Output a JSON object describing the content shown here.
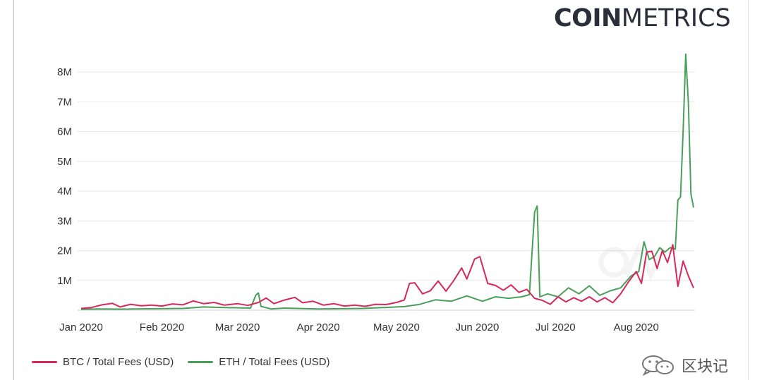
{
  "brand": {
    "logo_bold": "COIN",
    "logo_light": "METRICS"
  },
  "watermark": {
    "text": "区块记",
    "icon": "wechat-icon"
  },
  "colors": {
    "btc": "#d6285a",
    "eth": "#4aa05a",
    "grid": "#e8e8e8",
    "axis": "#cccccc",
    "text": "#333333"
  },
  "chart_data": {
    "type": "line",
    "title": "",
    "xlabel": "",
    "ylabel": "",
    "x_axis": "date",
    "x_range": [
      "2020-01-01",
      "2020-08-23"
    ],
    "ylim": [
      0,
      8500000
    ],
    "x_ticks": [
      {
        "date": "2020-01-01",
        "label": "Jan 2020"
      },
      {
        "date": "2020-02-01",
        "label": "Feb 2020"
      },
      {
        "date": "2020-03-01",
        "label": "Mar 2020"
      },
      {
        "date": "2020-04-01",
        "label": "Apr 2020"
      },
      {
        "date": "2020-05-01",
        "label": "May 2020"
      },
      {
        "date": "2020-06-01",
        "label": "Jun 2020"
      },
      {
        "date": "2020-07-01",
        "label": "Jul 2020"
      },
      {
        "date": "2020-08-01",
        "label": "Aug 2020"
      }
    ],
    "y_ticks": [
      {
        "value": 1000000,
        "label": "1M"
      },
      {
        "value": 2000000,
        "label": "2M"
      },
      {
        "value": 3000000,
        "label": "3M"
      },
      {
        "value": 4000000,
        "label": "4M"
      },
      {
        "value": 5000000,
        "label": "5M"
      },
      {
        "value": 6000000,
        "label": "6M"
      },
      {
        "value": 7000000,
        "label": "7M"
      },
      {
        "value": 8000000,
        "label": "8M"
      }
    ],
    "grid": true,
    "legend_position": "bottom-left",
    "series": [
      {
        "name": "BTC / Total Fees (USD)",
        "color": "#d6285a",
        "points": [
          [
            "2020-01-01",
            60000
          ],
          [
            "2020-01-05",
            90000
          ],
          [
            "2020-01-09",
            180000
          ],
          [
            "2020-01-13",
            230000
          ],
          [
            "2020-01-16",
            110000
          ],
          [
            "2020-01-20",
            200000
          ],
          [
            "2020-01-24",
            150000
          ],
          [
            "2020-01-28",
            170000
          ],
          [
            "2020-02-01",
            140000
          ],
          [
            "2020-02-05",
            210000
          ],
          [
            "2020-02-09",
            180000
          ],
          [
            "2020-02-13",
            310000
          ],
          [
            "2020-02-17",
            220000
          ],
          [
            "2020-02-21",
            260000
          ],
          [
            "2020-02-25",
            170000
          ],
          [
            "2020-03-01",
            220000
          ],
          [
            "2020-03-05",
            160000
          ],
          [
            "2020-03-09",
            260000
          ],
          [
            "2020-03-12",
            410000
          ],
          [
            "2020-03-15",
            220000
          ],
          [
            "2020-03-19",
            340000
          ],
          [
            "2020-03-23",
            430000
          ],
          [
            "2020-03-26",
            250000
          ],
          [
            "2020-03-30",
            300000
          ],
          [
            "2020-04-03",
            170000
          ],
          [
            "2020-04-07",
            220000
          ],
          [
            "2020-04-11",
            140000
          ],
          [
            "2020-04-15",
            170000
          ],
          [
            "2020-04-19",
            130000
          ],
          [
            "2020-04-23",
            200000
          ],
          [
            "2020-04-27",
            190000
          ],
          [
            "2020-05-01",
            260000
          ],
          [
            "2020-05-04",
            340000
          ],
          [
            "2020-05-06",
            900000
          ],
          [
            "2020-05-08",
            920000
          ],
          [
            "2020-05-11",
            550000
          ],
          [
            "2020-05-14",
            650000
          ],
          [
            "2020-05-17",
            980000
          ],
          [
            "2020-05-20",
            640000
          ],
          [
            "2020-05-23",
            1000000
          ],
          [
            "2020-05-26",
            1420000
          ],
          [
            "2020-05-28",
            1050000
          ],
          [
            "2020-05-31",
            1720000
          ],
          [
            "2020-06-02",
            1800000
          ],
          [
            "2020-06-05",
            900000
          ],
          [
            "2020-06-08",
            830000
          ],
          [
            "2020-06-11",
            670000
          ],
          [
            "2020-06-14",
            850000
          ],
          [
            "2020-06-17",
            600000
          ],
          [
            "2020-06-20",
            700000
          ],
          [
            "2020-06-23",
            400000
          ],
          [
            "2020-06-26",
            330000
          ],
          [
            "2020-06-29",
            200000
          ],
          [
            "2020-07-02",
            450000
          ],
          [
            "2020-07-05",
            280000
          ],
          [
            "2020-07-08",
            420000
          ],
          [
            "2020-07-11",
            300000
          ],
          [
            "2020-07-14",
            450000
          ],
          [
            "2020-07-17",
            280000
          ],
          [
            "2020-07-20",
            420000
          ],
          [
            "2020-07-23",
            250000
          ],
          [
            "2020-07-26",
            550000
          ],
          [
            "2020-07-29",
            950000
          ],
          [
            "2020-08-01",
            1300000
          ],
          [
            "2020-08-03",
            900000
          ],
          [
            "2020-08-05",
            1950000
          ],
          [
            "2020-08-07",
            1980000
          ],
          [
            "2020-08-09",
            1400000
          ],
          [
            "2020-08-11",
            2000000
          ],
          [
            "2020-08-13",
            1600000
          ],
          [
            "2020-08-15",
            2200000
          ],
          [
            "2020-08-17",
            800000
          ],
          [
            "2020-08-19",
            1650000
          ],
          [
            "2020-08-21",
            1150000
          ],
          [
            "2020-08-23",
            750000
          ]
        ]
      },
      {
        "name": "ETH / Total Fees (USD)",
        "color": "#4aa05a",
        "points": [
          [
            "2020-01-01",
            30000
          ],
          [
            "2020-01-08",
            40000
          ],
          [
            "2020-01-16",
            35000
          ],
          [
            "2020-01-24",
            45000
          ],
          [
            "2020-02-01",
            50000
          ],
          [
            "2020-02-09",
            60000
          ],
          [
            "2020-02-17",
            110000
          ],
          [
            "2020-02-25",
            90000
          ],
          [
            "2020-03-01",
            80000
          ],
          [
            "2020-03-06",
            70000
          ],
          [
            "2020-03-08",
            500000
          ],
          [
            "2020-03-09",
            580000
          ],
          [
            "2020-03-10",
            130000
          ],
          [
            "2020-03-14",
            40000
          ],
          [
            "2020-03-19",
            70000
          ],
          [
            "2020-03-24",
            60000
          ],
          [
            "2020-04-01",
            40000
          ],
          [
            "2020-04-10",
            50000
          ],
          [
            "2020-04-18",
            60000
          ],
          [
            "2020-04-26",
            90000
          ],
          [
            "2020-05-04",
            120000
          ],
          [
            "2020-05-10",
            200000
          ],
          [
            "2020-05-16",
            350000
          ],
          [
            "2020-05-22",
            300000
          ],
          [
            "2020-05-28",
            480000
          ],
          [
            "2020-06-03",
            300000
          ],
          [
            "2020-06-08",
            450000
          ],
          [
            "2020-06-13",
            400000
          ],
          [
            "2020-06-18",
            450000
          ],
          [
            "2020-06-21",
            520000
          ],
          [
            "2020-06-23",
            3300000
          ],
          [
            "2020-06-24",
            3500000
          ],
          [
            "2020-06-25",
            450000
          ],
          [
            "2020-06-28",
            550000
          ],
          [
            "2020-07-02",
            450000
          ],
          [
            "2020-07-06",
            750000
          ],
          [
            "2020-07-10",
            550000
          ],
          [
            "2020-07-14",
            820000
          ],
          [
            "2020-07-18",
            500000
          ],
          [
            "2020-07-22",
            650000
          ],
          [
            "2020-07-26",
            750000
          ],
          [
            "2020-07-30",
            1150000
          ],
          [
            "2020-08-02",
            1300000
          ],
          [
            "2020-08-04",
            2300000
          ],
          [
            "2020-08-06",
            1700000
          ],
          [
            "2020-08-08",
            1800000
          ],
          [
            "2020-08-10",
            2100000
          ],
          [
            "2020-08-12",
            1950000
          ],
          [
            "2020-08-14",
            2100000
          ],
          [
            "2020-08-16",
            2050000
          ],
          [
            "2020-08-17",
            3700000
          ],
          [
            "2020-08-18",
            3800000
          ],
          [
            "2020-08-19",
            6000000
          ],
          [
            "2020-08-20",
            8600000
          ],
          [
            "2020-08-21",
            7000000
          ],
          [
            "2020-08-22",
            3900000
          ],
          [
            "2020-08-23",
            3450000
          ]
        ]
      }
    ]
  }
}
